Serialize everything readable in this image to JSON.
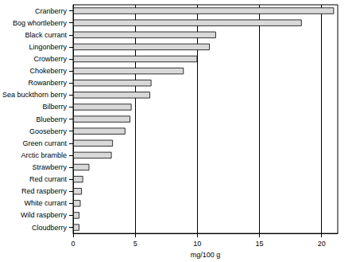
{
  "chart_data": {
    "type": "bar",
    "orientation": "horizontal",
    "x_label": "mg/100 g",
    "categories": [
      "Cranberry",
      "Bog whortleberry",
      "Black currant",
      "Lingonberry",
      "Crowberry",
      "Chokeberry",
      "Rowanberry",
      "Sea buckthorn berry",
      "Bilberry",
      "Blueberry",
      "Gooseberry",
      "Green currant",
      "Arctic bramble",
      "Strawberry",
      "Red currant",
      "Red raspberry",
      "White currant",
      "Wild raspberry",
      "Cloudberry"
    ],
    "values": [
      21,
      18.4,
      11.5,
      11,
      10,
      8.9,
      6.3,
      6.2,
      4.7,
      4.6,
      4.2,
      3.2,
      3.1,
      1.3,
      0.8,
      0.7,
      0.6,
      0.5,
      0.5
    ],
    "color": "#d9d9d9",
    "xlim": [
      0,
      21.3
    ],
    "xticks": [
      0,
      5,
      10,
      15,
      20
    ],
    "grid": true
  }
}
